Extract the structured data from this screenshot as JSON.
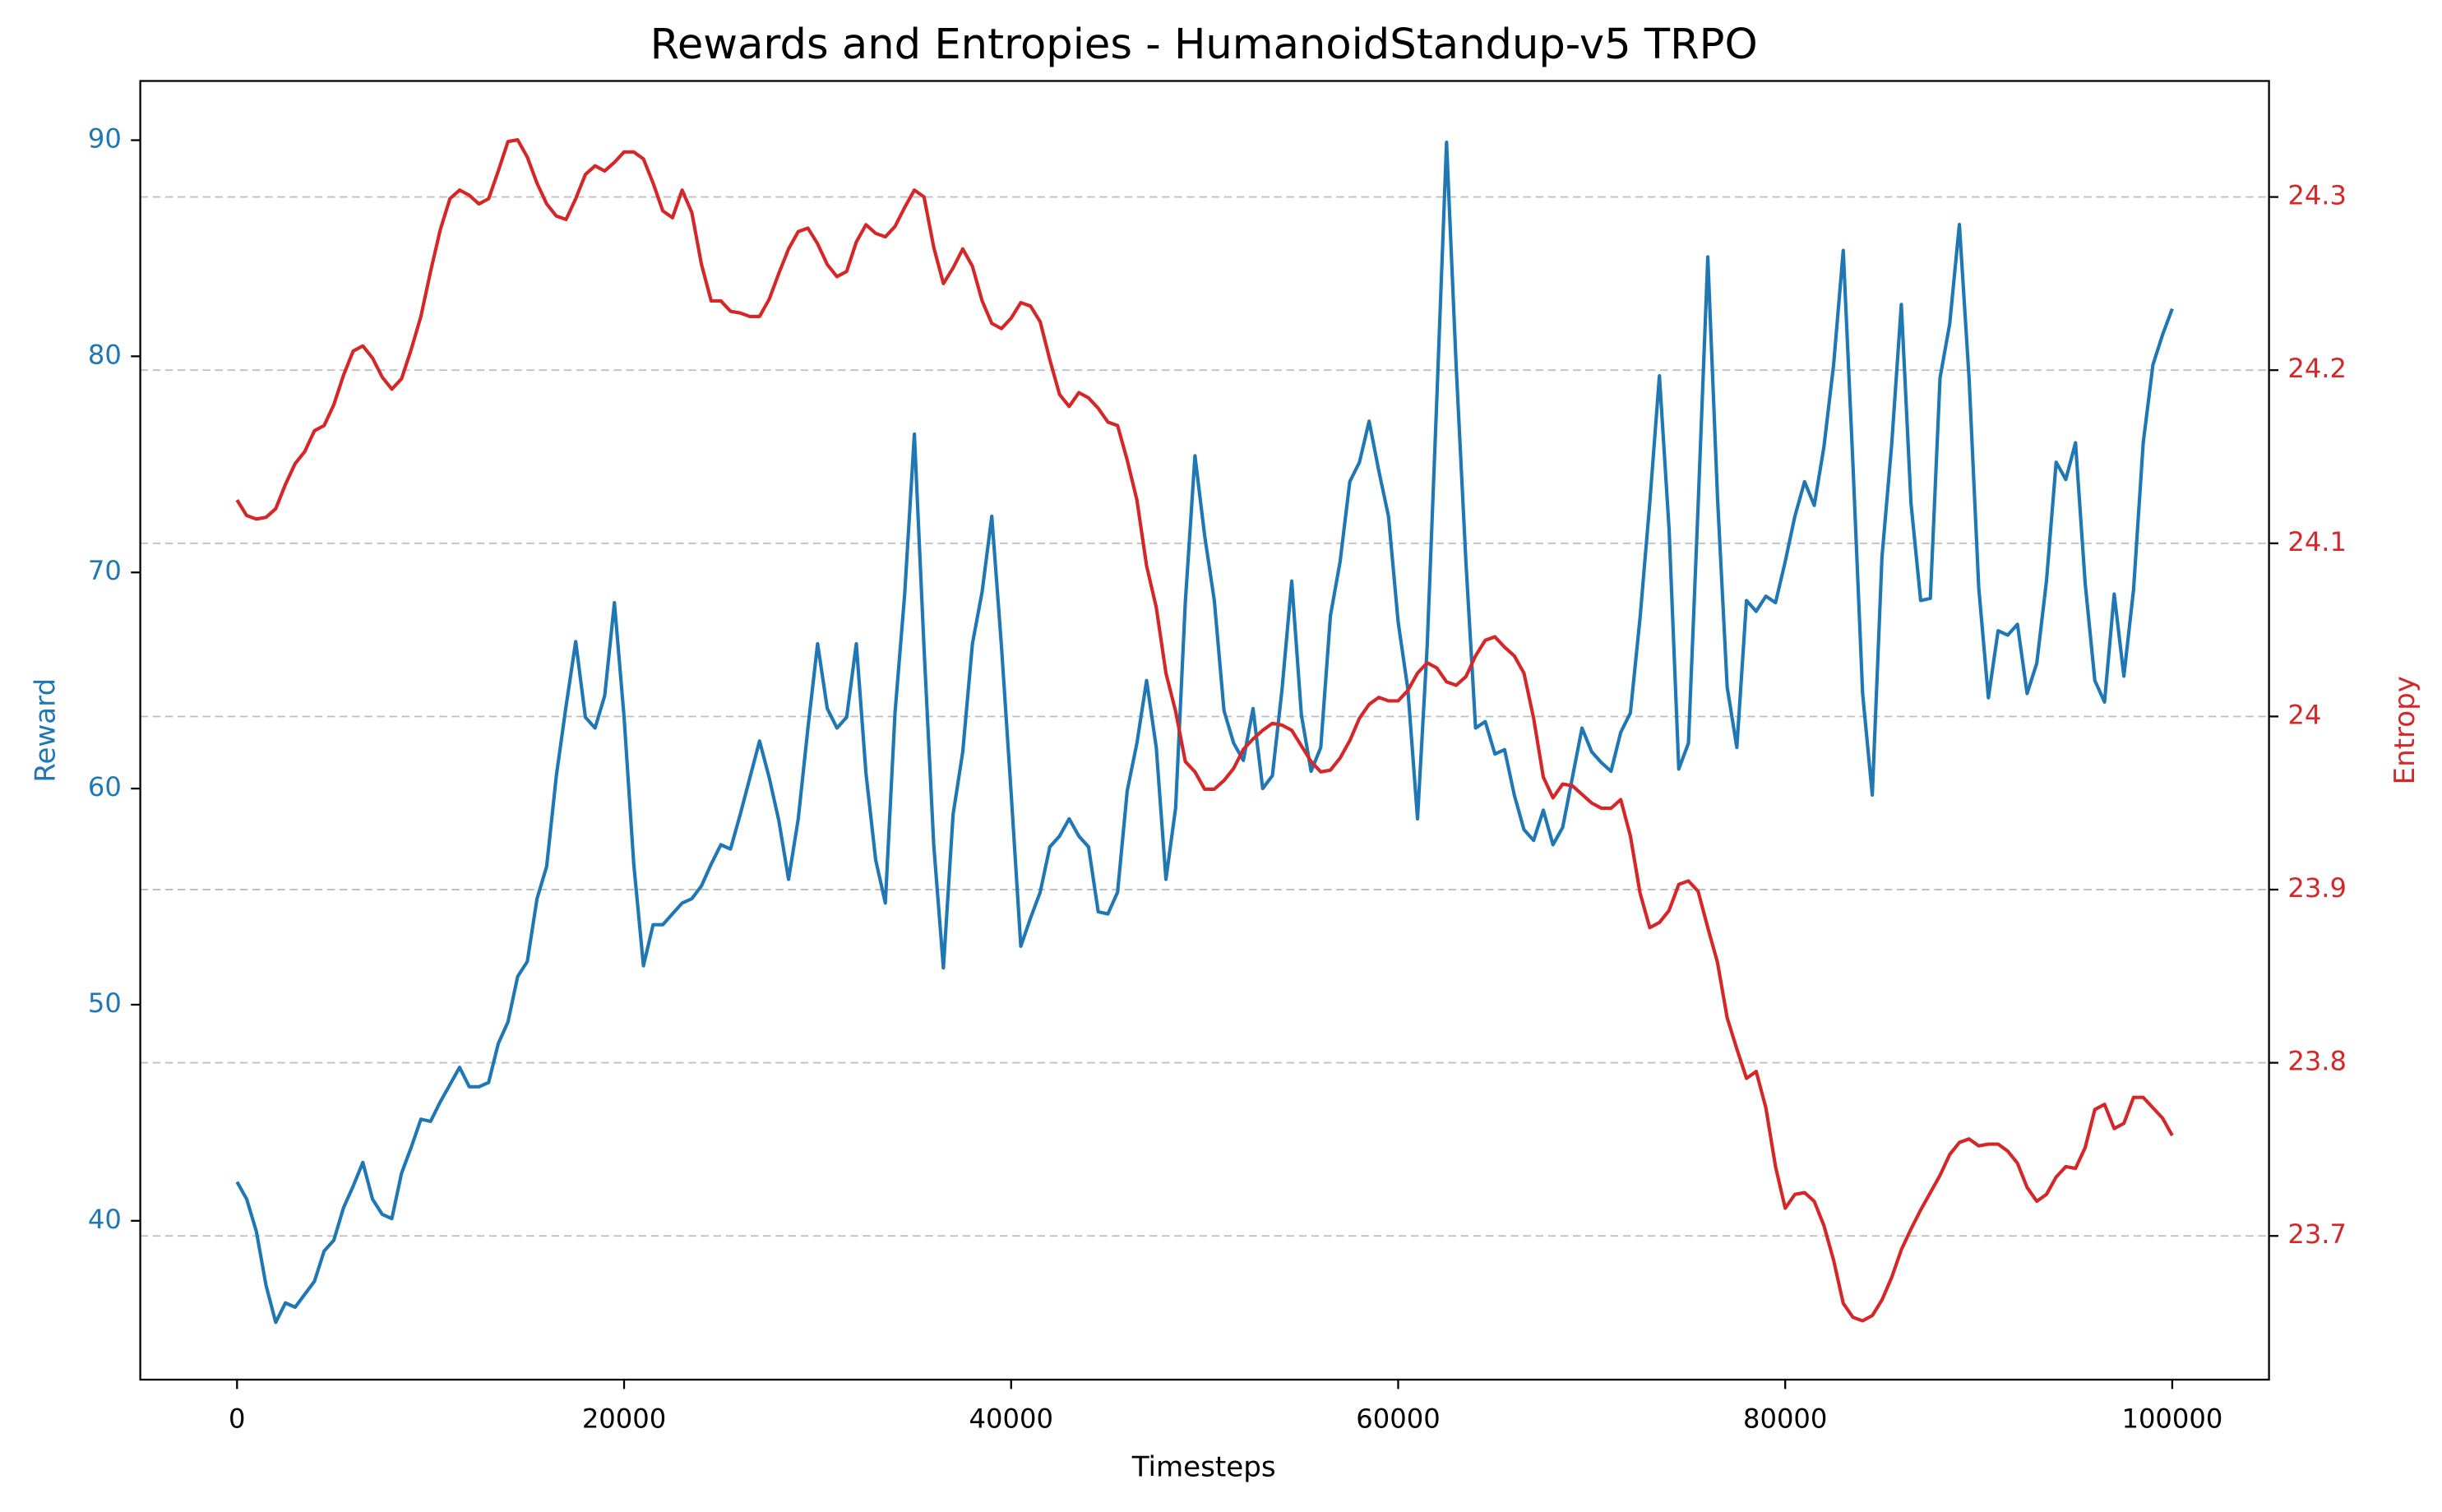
{
  "chart_data": {
    "type": "line",
    "title": "Rewards and Entropies - HumanoidStandup-v5 TRPO",
    "xlabel": "Timesteps",
    "ylabel": "Reward",
    "y2label": "Entropy",
    "x": [
      0,
      500,
      1000,
      1500,
      2000,
      2500,
      3000,
      3500,
      4000,
      4500,
      5000,
      5500,
      6000,
      6500,
      7000,
      7500,
      8000,
      8500,
      9000,
      9500,
      10000,
      10500,
      11000,
      11500,
      12000,
      12500,
      13000,
      13500,
      14000,
      14500,
      15000,
      15500,
      16000,
      16500,
      17000,
      17500,
      18000,
      18500,
      19000,
      19500,
      20000,
      20500,
      21000,
      21500,
      22000,
      22500,
      23000,
      23500,
      24000,
      24500,
      25000,
      25500,
      26000,
      26500,
      27000,
      27500,
      28000,
      28500,
      29000,
      29500,
      30000,
      30500,
      31000,
      31500,
      32000,
      32500,
      33000,
      33500,
      34000,
      34500,
      35000,
      35500,
      36000,
      36500,
      37000,
      37500,
      38000,
      38500,
      39000,
      39500,
      40000,
      40500,
      41000,
      41500,
      42000,
      42500,
      43000,
      43500,
      44000,
      44500,
      45000,
      45500,
      46000,
      46500,
      47000,
      47500,
      48000,
      48500,
      49000,
      49500,
      50000,
      50500,
      51000,
      51500,
      52000,
      52500,
      53000,
      53500,
      54000,
      54500,
      55000,
      55500,
      56000,
      56500,
      57000,
      57500,
      58000,
      58500,
      59000,
      59500,
      60000,
      60500,
      61000,
      61500,
      62000,
      62500,
      63000,
      63500,
      64000,
      64500,
      65000,
      65500,
      66000,
      66500,
      67000,
      67500,
      68000,
      68500,
      69000,
      69500,
      70000,
      70500,
      71000,
      71500,
      72000,
      72500,
      73000,
      73500,
      74000,
      74500,
      75000,
      75500,
      76000,
      76500,
      77000,
      77500,
      78000,
      78500,
      79000,
      79500,
      80000,
      80500,
      81000,
      81500,
      82000,
      82500,
      83000,
      83500,
      84000,
      84500,
      85000,
      85500,
      86000,
      86500,
      87000,
      87500,
      88000,
      88500,
      89000,
      89500,
      90000,
      90500,
      91000,
      91500,
      92000,
      92500,
      93000,
      93500,
      94000,
      94500,
      95000,
      95500,
      96000,
      96500,
      97000,
      97500,
      98000,
      98500,
      99000,
      99500,
      100000
    ],
    "series": [
      {
        "name": "Reward",
        "color": "#1f77b4",
        "axis": "y",
        "values": [
          41.8,
          41.0,
          39.5,
          37.0,
          35.3,
          36.2,
          36.0,
          36.6,
          37.2,
          38.6,
          39.1,
          40.6,
          41.6,
          42.7,
          41.0,
          40.3,
          40.1,
          42.2,
          43.4,
          44.7,
          44.6,
          45.5,
          46.3,
          47.1,
          46.2,
          46.2,
          46.4,
          48.2,
          49.2,
          51.3,
          52.0,
          54.9,
          56.4,
          60.6,
          63.8,
          66.8,
          63.3,
          62.8,
          64.3,
          68.6,
          63.3,
          56.5,
          51.8,
          53.7,
          53.7,
          54.2,
          54.7,
          54.9,
          55.5,
          56.5,
          57.4,
          57.2,
          58.8,
          60.5,
          62.2,
          60.5,
          58.5,
          55.8,
          58.6,
          62.8,
          66.7,
          63.7,
          62.8,
          63.3,
          66.7,
          60.7,
          56.7,
          54.7,
          63.5,
          69.0,
          76.4,
          66.5,
          57.4,
          51.7,
          58.8,
          61.7,
          66.7,
          69.1,
          72.6,
          66.6,
          59.8,
          52.7,
          54.0,
          55.2,
          57.3,
          57.8,
          58.6,
          57.8,
          57.3,
          54.3,
          54.2,
          55.2,
          59.9,
          62.1,
          65.0,
          61.9,
          55.8,
          59.1,
          68.6,
          75.4,
          71.7,
          68.7,
          63.6,
          62.1,
          61.3,
          63.7,
          60.0,
          60.6,
          64.6,
          69.6,
          63.4,
          60.8,
          61.9,
          68.0,
          70.5,
          74.2,
          75.1,
          77.0,
          74.7,
          72.6,
          67.7,
          64.6,
          58.6,
          66.6,
          78.1,
          89.9,
          79.5,
          70.5,
          62.8,
          63.1,
          61.6,
          61.8,
          59.7,
          58.1,
          57.6,
          59.0,
          57.4,
          58.2,
          60.5,
          62.8,
          61.7,
          61.2,
          60.8,
          62.6,
          63.5,
          67.9,
          73.2,
          79.1,
          72.0,
          60.9,
          62.1,
          73.1,
          84.6,
          73.5,
          64.7,
          61.9,
          68.7,
          68.2,
          68.9,
          68.6,
          70.5,
          72.6,
          74.2,
          73.1,
          75.8,
          79.6,
          84.9,
          75.0,
          64.4,
          59.7,
          70.7,
          75.9,
          82.4,
          73.2,
          68.7,
          68.8,
          79.0,
          81.5,
          86.1,
          79.0,
          69.3,
          64.2,
          67.3,
          67.1,
          67.6,
          64.4,
          65.8,
          69.6,
          75.1,
          74.3,
          76.0,
          69.5,
          65.0,
          64.0,
          69.0,
          65.2,
          69.2,
          76.0,
          79.6,
          81.0,
          82.2
        ]
      },
      {
        "name": "Entropy",
        "color": "#d62728",
        "axis": "y2",
        "values": [
          24.125,
          24.116,
          24.114,
          24.115,
          24.12,
          24.134,
          24.146,
          24.153,
          24.165,
          24.168,
          24.18,
          24.197,
          24.211,
          24.214,
          24.207,
          24.196,
          24.189,
          24.195,
          24.212,
          24.231,
          24.257,
          24.281,
          24.299,
          24.304,
          24.301,
          24.296,
          24.299,
          24.315,
          24.332,
          24.333,
          24.323,
          24.308,
          24.296,
          24.289,
          24.287,
          24.299,
          24.313,
          24.318,
          24.315,
          24.32,
          24.326,
          24.326,
          24.322,
          24.308,
          24.292,
          24.288,
          24.304,
          24.291,
          24.261,
          24.24,
          24.24,
          24.234,
          24.233,
          24.231,
          24.231,
          24.241,
          24.256,
          24.27,
          24.28,
          24.282,
          24.273,
          24.261,
          24.254,
          24.257,
          24.274,
          24.284,
          24.279,
          24.277,
          24.283,
          24.294,
          24.304,
          24.3,
          24.271,
          24.25,
          24.259,
          24.27,
          24.26,
          24.24,
          24.227,
          24.224,
          24.23,
          24.239,
          24.237,
          24.228,
          24.206,
          24.186,
          24.179,
          24.187,
          24.184,
          24.178,
          24.17,
          24.168,
          24.148,
          24.125,
          24.087,
          24.063,
          24.025,
          24.003,
          23.974,
          23.968,
          23.958,
          23.958,
          23.963,
          23.97,
          23.981,
          23.987,
          23.992,
          23.996,
          23.995,
          23.992,
          23.983,
          23.974,
          23.968,
          23.969,
          23.976,
          23.986,
          23.999,
          24.007,
          24.011,
          24.009,
          24.009,
          24.015,
          24.025,
          24.031,
          24.028,
          24.02,
          24.018,
          24.023,
          24.035,
          24.044,
          24.046,
          24.04,
          24.035,
          24.025,
          23.999,
          23.965,
          23.953,
          23.961,
          23.96,
          23.955,
          23.95,
          23.947,
          23.947,
          23.952,
          23.931,
          23.898,
          23.878,
          23.881,
          23.888,
          23.903,
          23.905,
          23.899,
          23.878,
          23.858,
          23.826,
          23.808,
          23.791,
          23.795,
          23.774,
          23.74,
          23.716,
          23.724,
          23.725,
          23.72,
          23.706,
          23.686,
          23.661,
          23.653,
          23.651,
          23.654,
          23.663,
          23.676,
          23.692,
          23.704,
          23.715,
          23.725,
          23.735,
          23.747,
          23.754,
          23.756,
          23.752,
          23.753,
          23.753,
          23.749,
          23.742,
          23.728,
          23.72,
          23.724,
          23.734,
          23.74,
          23.739,
          23.751,
          23.773,
          23.776,
          23.762,
          23.765,
          23.78,
          23.78,
          23.774,
          23.768,
          23.758
        ]
      }
    ],
    "xlim": [
      -5000,
      105000
    ],
    "xticks": [
      0,
      20000,
      40000,
      60000,
      80000,
      100000
    ],
    "ylim": [
      32.65,
      92.74
    ],
    "yticks": [
      40,
      50,
      60,
      70,
      80,
      90
    ],
    "y2lim": [
      23.617,
      24.367
    ],
    "y2ticks": [
      23.7,
      23.8,
      23.9,
      24.0,
      24.1,
      24.2,
      24.3
    ],
    "grid": "y2",
    "grid_color": "#c0c0c0"
  }
}
